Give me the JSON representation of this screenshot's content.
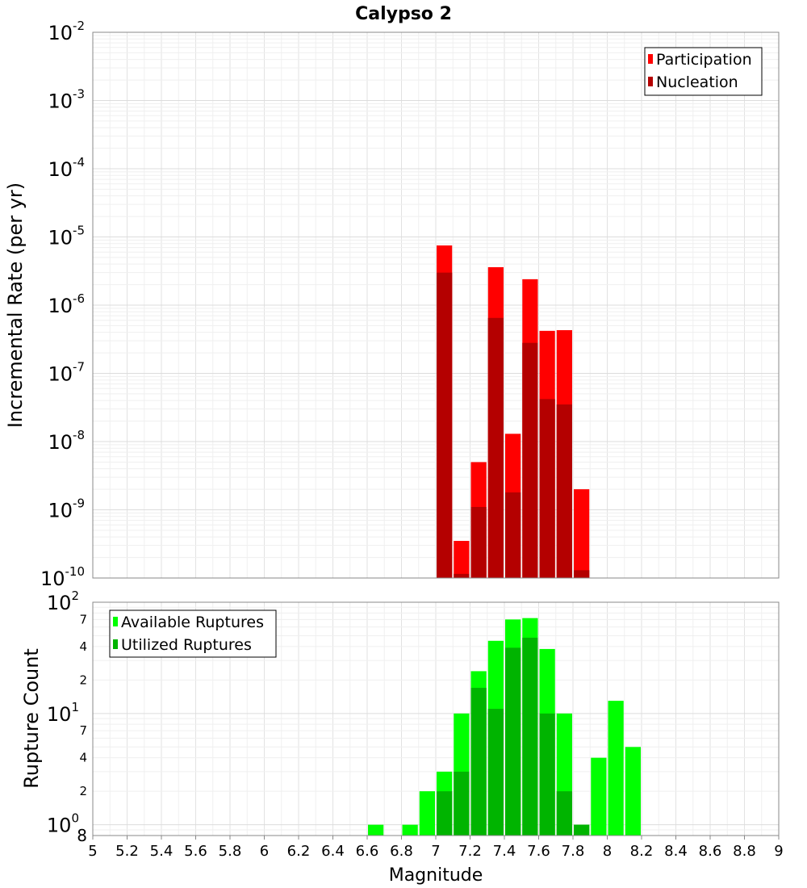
{
  "chart_data": [
    {
      "type": "bar",
      "title": "Calypso 2",
      "xlabel": "",
      "ylabel": "Incremental Rate (per yr)",
      "yscale": "log",
      "ylim": [
        1e-10,
        0.01
      ],
      "xlim": [
        5,
        9
      ],
      "y_tick_labels": [
        {
          "base": "10",
          "exp": "-10"
        },
        {
          "base": "10",
          "exp": "-9"
        },
        {
          "base": "10",
          "exp": "-8"
        },
        {
          "base": "10",
          "exp": "-7"
        },
        {
          "base": "10",
          "exp": "-6"
        },
        {
          "base": "10",
          "exp": "-5"
        },
        {
          "base": "10",
          "exp": "-4"
        },
        {
          "base": "10",
          "exp": "-3"
        },
        {
          "base": "10",
          "exp": "-2"
        }
      ],
      "grid": true,
      "legend": "top-right",
      "bar_width": 0.1,
      "series": [
        {
          "name": "Participation",
          "color": "#ff0000",
          "points": [
            {
              "x": 7.05,
              "y": 7.5e-06
            },
            {
              "x": 7.15,
              "y": 3.5e-10
            },
            {
              "x": 7.25,
              "y": 5e-09
            },
            {
              "x": 7.35,
              "y": 3.6e-06
            },
            {
              "x": 7.45,
              "y": 1.3e-08
            },
            {
              "x": 7.55,
              "y": 2.4e-06
            },
            {
              "x": 7.65,
              "y": 4.2e-07
            },
            {
              "x": 7.75,
              "y": 4.3e-07
            },
            {
              "x": 7.85,
              "y": 2e-09
            }
          ]
        },
        {
          "name": "Nucleation",
          "color": "#b40000",
          "points": [
            {
              "x": 7.05,
              "y": 3e-06
            },
            {
              "x": 7.15,
              "y": 1.15e-10
            },
            {
              "x": 7.25,
              "y": 1.1e-09
            },
            {
              "x": 7.35,
              "y": 6.5e-07
            },
            {
              "x": 7.45,
              "y": 1.8e-09
            },
            {
              "x": 7.55,
              "y": 2.8e-07
            },
            {
              "x": 7.65,
              "y": 4.2e-08
            },
            {
              "x": 7.75,
              "y": 3.5e-08
            },
            {
              "x": 7.85,
              "y": 1.3e-10
            }
          ]
        }
      ]
    },
    {
      "type": "bar",
      "title": "",
      "xlabel": "Magnitude",
      "ylabel": "Rupture Count",
      "yscale": "log",
      "ylim": [
        0.8,
        100
      ],
      "xlim": [
        5,
        9
      ],
      "x_ticks": [
        "5",
        "5.2",
        "5.4",
        "5.6",
        "5.8",
        "6",
        "6.2",
        "6.4",
        "6.6",
        "6.8",
        "7",
        "7.2",
        "7.4",
        "7.6",
        "7.8",
        "8",
        "8.2",
        "8.4",
        "8.6",
        "8.8",
        "9"
      ],
      "y_tick_labels": [
        {
          "v": 0.8,
          "text": "8",
          "sup": ""
        },
        {
          "v": 1,
          "text": "10",
          "sup": "0"
        },
        {
          "v": 2,
          "text": "2",
          "sup": ""
        },
        {
          "v": 4,
          "text": "4",
          "sup": ""
        },
        {
          "v": 7,
          "text": "7",
          "sup": ""
        },
        {
          "v": 10,
          "text": "10",
          "sup": "1"
        },
        {
          "v": 20,
          "text": "2",
          "sup": ""
        },
        {
          "v": 40,
          "text": "4",
          "sup": ""
        },
        {
          "v": 70,
          "text": "7",
          "sup": ""
        },
        {
          "v": 100,
          "text": "10",
          "sup": "2"
        }
      ],
      "grid": true,
      "legend": "top-left",
      "bar_width": 0.1,
      "series": [
        {
          "name": "Available Ruptures",
          "color": "#00ff00",
          "points": [
            {
              "x": 6.65,
              "y": 1
            },
            {
              "x": 6.85,
              "y": 1
            },
            {
              "x": 6.95,
              "y": 2
            },
            {
              "x": 7.05,
              "y": 3
            },
            {
              "x": 7.15,
              "y": 10
            },
            {
              "x": 7.25,
              "y": 24
            },
            {
              "x": 7.35,
              "y": 45
            },
            {
              "x": 7.45,
              "y": 70
            },
            {
              "x": 7.55,
              "y": 72
            },
            {
              "x": 7.65,
              "y": 38
            },
            {
              "x": 7.75,
              "y": 10
            },
            {
              "x": 7.85,
              "y": 1
            },
            {
              "x": 7.95,
              "y": 4
            },
            {
              "x": 8.05,
              "y": 13
            },
            {
              "x": 8.15,
              "y": 5
            }
          ]
        },
        {
          "name": "Utilized Ruptures",
          "color": "#00b400",
          "points": [
            {
              "x": 7.05,
              "y": 2
            },
            {
              "x": 7.15,
              "y": 3
            },
            {
              "x": 7.25,
              "y": 17
            },
            {
              "x": 7.35,
              "y": 11
            },
            {
              "x": 7.45,
              "y": 39
            },
            {
              "x": 7.55,
              "y": 48
            },
            {
              "x": 7.65,
              "y": 10
            },
            {
              "x": 7.75,
              "y": 2
            },
            {
              "x": 7.85,
              "y": 1
            }
          ]
        }
      ]
    }
  ]
}
